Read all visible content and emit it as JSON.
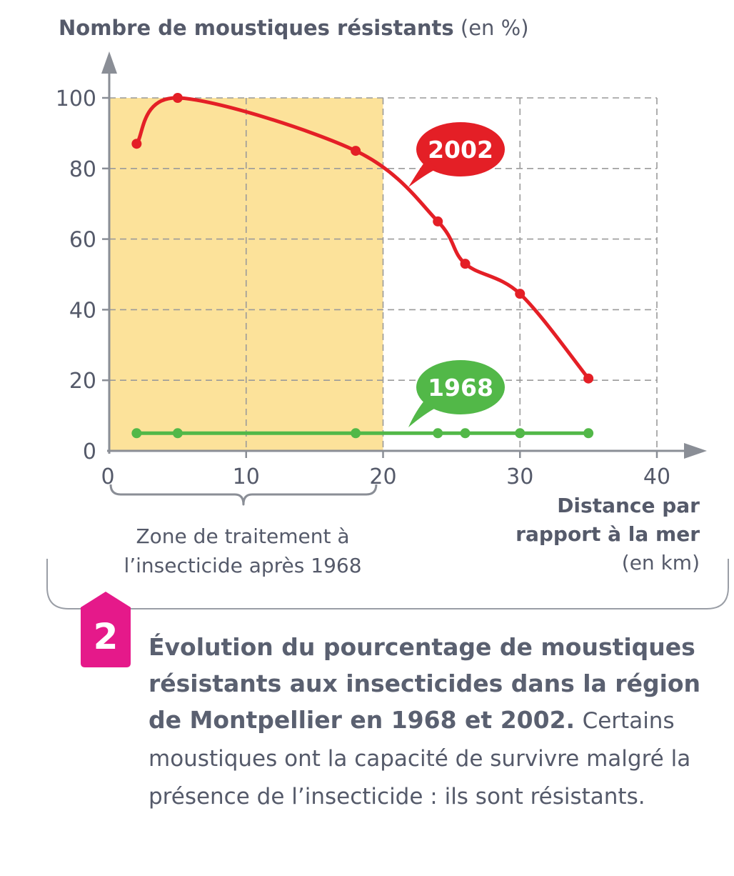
{
  "chart_data": {
    "type": "line",
    "ylabel_bold": "Nombre de moustiques résistants",
    "ylabel_unit": "(en %)",
    "xlabel_bold": "Distance par rapport à la mer",
    "xlabel_line1": "Distance par",
    "xlabel_line2": "rapport à la mer",
    "xlabel_unit": "(en km)",
    "xlim": [
      0,
      40
    ],
    "ylim": [
      0,
      100
    ],
    "xticks": [
      0,
      10,
      20,
      30,
      40
    ],
    "yticks": [
      0,
      20,
      40,
      60,
      80,
      100
    ],
    "grid": true,
    "highlight_zone": {
      "x_from": 0,
      "x_to": 20,
      "y_to": 100,
      "color": "#fce29a"
    },
    "zone_label_line1": "Zone de traitement à",
    "zone_label_line2": "l’insecticide après 1968",
    "series": [
      {
        "name": "2002",
        "color": "#e41f26",
        "x": [
          2,
          5,
          18,
          24,
          26,
          30,
          35
        ],
        "values": [
          87,
          100,
          85,
          65,
          53,
          44.5,
          20.5
        ]
      },
      {
        "name": "1968",
        "color": "#52b848",
        "x": [
          2,
          5,
          18,
          24,
          26,
          30,
          35
        ],
        "values": [
          5,
          5,
          5,
          5,
          5,
          5,
          5
        ]
      }
    ]
  },
  "figure": {
    "number": "2",
    "badge_color": "#e5198a",
    "caption_bold": "Évolution du pourcentage de moustiques résistants aux insecticides dans la région de Montpellier en 1968 et 2002.",
    "caption_rest": "Certains moustiques ont la capacité de survivre malgré la présence de l’insecticide : ils sont résistants."
  }
}
